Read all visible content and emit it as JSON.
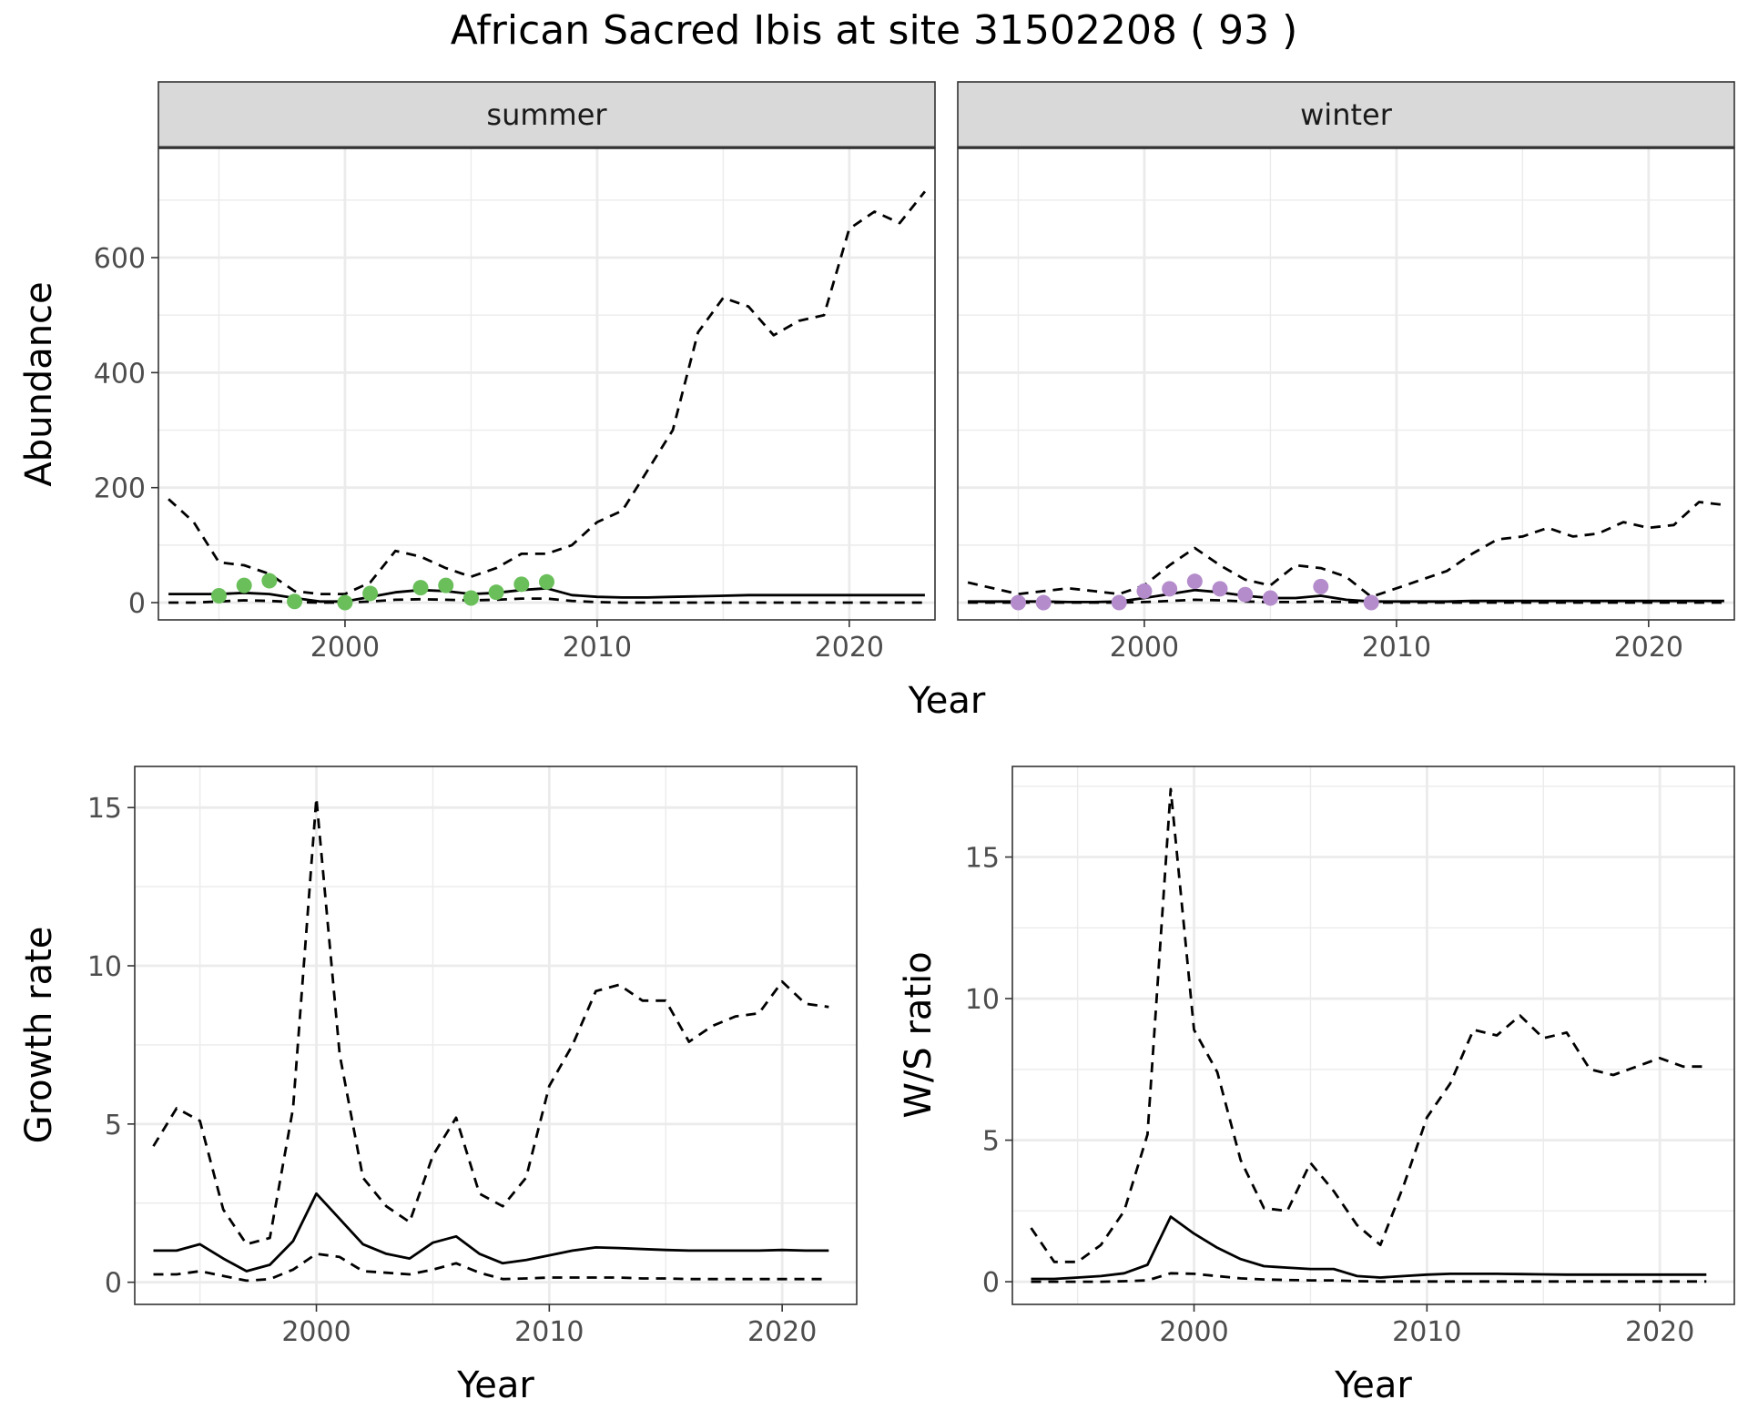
{
  "title": "African Sacred Ibis at site 31502208 ( 93 )",
  "colors": {
    "summer_points": "#6abf5a",
    "winter_points": "#b48ccb",
    "strip_fill": "#d9d9d9",
    "grid": "#ebebeb",
    "line": "#000000"
  },
  "chart_data": [
    {
      "id": "summer",
      "type": "line",
      "strip": "summer",
      "ylabel": "Abundance",
      "xlabel": "Year",
      "xlim": [
        1992.6,
        2023.4
      ],
      "ylim": [
        -30,
        790
      ],
      "xticks": [
        2000,
        2010,
        2020
      ],
      "yticks": [
        0,
        200,
        400,
        600
      ],
      "grid": true,
      "series": [
        {
          "role": "estimate",
          "style": "solid",
          "x": [
            1993,
            1994,
            1995,
            1996,
            1997,
            1998,
            1999,
            2000,
            2001,
            2002,
            2003,
            2004,
            2005,
            2006,
            2007,
            2008,
            2009,
            2010,
            2011,
            2012,
            2013,
            2014,
            2015,
            2016,
            2017,
            2018,
            2019,
            2020,
            2021,
            2022,
            2023
          ],
          "y": [
            15,
            15,
            15,
            17,
            15,
            8,
            2,
            2,
            10,
            18,
            22,
            20,
            15,
            17,
            22,
            25,
            13,
            10,
            9,
            9,
            10,
            11,
            12,
            13,
            13,
            13,
            13,
            13,
            13,
            13,
            13
          ]
        },
        {
          "role": "upper",
          "style": "dashed",
          "x": [
            1993,
            1994,
            1995,
            1996,
            1997,
            1998,
            1999,
            2000,
            2001,
            2002,
            2003,
            2004,
            2005,
            2006,
            2007,
            2008,
            2009,
            2010,
            2011,
            2012,
            2013,
            2014,
            2015,
            2016,
            2017,
            2018,
            2019,
            2020,
            2021,
            2022,
            2023
          ],
          "y": [
            180,
            140,
            70,
            65,
            50,
            20,
            15,
            15,
            35,
            90,
            80,
            60,
            45,
            60,
            85,
            85,
            100,
            140,
            160,
            230,
            300,
            470,
            530,
            515,
            465,
            490,
            500,
            650,
            680,
            660,
            715
          ]
        },
        {
          "role": "lower",
          "style": "dashed",
          "x": [
            1993,
            1994,
            1995,
            1996,
            1997,
            1998,
            1999,
            2000,
            2001,
            2002,
            2003,
            2004,
            2005,
            2006,
            2007,
            2008,
            2009,
            2010,
            2011,
            2012,
            2013,
            2014,
            2015,
            2016,
            2017,
            2018,
            2019,
            2020,
            2021,
            2022,
            2023
          ],
          "y": [
            0,
            0,
            2,
            4,
            3,
            1,
            0,
            0,
            2,
            5,
            6,
            5,
            4,
            5,
            7,
            7,
            3,
            1,
            0,
            0,
            0,
            0,
            0,
            0,
            0,
            0,
            0,
            0,
            0,
            0,
            0
          ]
        },
        {
          "role": "observed",
          "style": "points",
          "x": [
            1995,
            1996,
            1997,
            1998,
            2000,
            2001,
            2003,
            2004,
            2005,
            2006,
            2007,
            2008
          ],
          "y": [
            12,
            30,
            38,
            2,
            0,
            16,
            26,
            30,
            8,
            18,
            32,
            36
          ]
        }
      ]
    },
    {
      "id": "winter",
      "type": "line",
      "strip": "winter",
      "xlabel": "Year",
      "xlim": [
        1992.6,
        2023.4
      ],
      "ylim": [
        -30,
        790
      ],
      "xticks": [
        2000,
        2010,
        2020
      ],
      "yticks": [
        0,
        200,
        400,
        600
      ],
      "grid": true,
      "series": [
        {
          "role": "estimate",
          "style": "solid",
          "x": [
            1993,
            1994,
            1995,
            1996,
            1997,
            1998,
            1999,
            2000,
            2001,
            2002,
            2003,
            2004,
            2005,
            2006,
            2007,
            2008,
            2009,
            2010,
            2011,
            2012,
            2013,
            2014,
            2015,
            2016,
            2017,
            2018,
            2019,
            2020,
            2021,
            2022,
            2023
          ],
          "y": [
            2,
            2,
            2,
            2,
            1,
            1,
            2,
            8,
            15,
            22,
            18,
            12,
            8,
            8,
            12,
            5,
            2,
            2,
            2,
            2,
            3,
            3,
            3,
            3,
            3,
            3,
            3,
            3,
            3,
            3,
            3
          ]
        },
        {
          "role": "upper",
          "style": "dashed",
          "x": [
            1993,
            1994,
            1995,
            1996,
            1997,
            1998,
            1999,
            2000,
            2001,
            2002,
            2003,
            2004,
            2005,
            2006,
            2007,
            2008,
            2009,
            2010,
            2011,
            2012,
            2013,
            2014,
            2015,
            2016,
            2017,
            2018,
            2019,
            2020,
            2021,
            2022,
            2023
          ],
          "y": [
            35,
            25,
            15,
            20,
            25,
            20,
            15,
            30,
            65,
            95,
            65,
            40,
            30,
            65,
            60,
            45,
            10,
            25,
            40,
            55,
            85,
            110,
            115,
            130,
            115,
            120,
            140,
            130,
            135,
            175,
            170
          ]
        },
        {
          "role": "lower",
          "style": "dashed",
          "x": [
            1993,
            1994,
            1995,
            1996,
            1997,
            1998,
            1999,
            2000,
            2001,
            2002,
            2003,
            2004,
            2005,
            2006,
            2007,
            2008,
            2009,
            2010,
            2011,
            2012,
            2013,
            2014,
            2015,
            2016,
            2017,
            2018,
            2019,
            2020,
            2021,
            2022,
            2023
          ],
          "y": [
            0,
            0,
            0,
            0,
            0,
            0,
            0,
            1,
            3,
            5,
            4,
            2,
            1,
            1,
            2,
            1,
            0,
            0,
            0,
            0,
            0,
            0,
            0,
            0,
            0,
            0,
            0,
            0,
            0,
            0,
            0
          ]
        },
        {
          "role": "observed",
          "style": "points",
          "x": [
            1995,
            1996,
            1999,
            2000,
            2001,
            2002,
            2003,
            2004,
            2005,
            2007,
            2009
          ],
          "y": [
            0,
            0,
            0,
            20,
            24,
            37,
            24,
            14,
            8,
            28,
            0
          ]
        }
      ]
    },
    {
      "id": "growth",
      "type": "line",
      "ylabel": "Growth rate",
      "xlabel": "Year",
      "xlim": [
        1992.2,
        2023.2
      ],
      "ylim": [
        -0.7,
        16.3
      ],
      "xticks": [
        2000,
        2010,
        2020
      ],
      "yticks": [
        0,
        5,
        10,
        15
      ],
      "grid": true,
      "series": [
        {
          "role": "estimate",
          "style": "solid",
          "x": [
            1993,
            1994,
            1995,
            1996,
            1997,
            1998,
            1999,
            2000,
            2001,
            2002,
            2003,
            2004,
            2005,
            2006,
            2007,
            2008,
            2009,
            2010,
            2011,
            2012,
            2013,
            2014,
            2015,
            2016,
            2017,
            2018,
            2019,
            2020,
            2021,
            2022
          ],
          "y": [
            1.0,
            1.0,
            1.2,
            0.75,
            0.35,
            0.55,
            1.3,
            2.8,
            2.0,
            1.2,
            0.9,
            0.75,
            1.25,
            1.45,
            0.9,
            0.6,
            0.7,
            0.85,
            1.0,
            1.1,
            1.08,
            1.05,
            1.02,
            1.0,
            1.0,
            1.0,
            1.0,
            1.02,
            1.0,
            1.0
          ]
        },
        {
          "role": "upper",
          "style": "dashed",
          "x": [
            1993,
            1994,
            1995,
            1996,
            1997,
            1998,
            1999,
            2000,
            2001,
            2002,
            2003,
            2004,
            2005,
            2006,
            2007,
            2008,
            2009,
            2010,
            2011,
            2012,
            2013,
            2014,
            2015,
            2016,
            2017,
            2018,
            2019,
            2020,
            2021,
            2022
          ],
          "y": [
            4.3,
            5.5,
            5.1,
            2.3,
            1.2,
            1.4,
            5.5,
            15.3,
            7.2,
            3.3,
            2.4,
            1.9,
            4.0,
            5.2,
            2.8,
            2.4,
            3.3,
            6.2,
            7.5,
            9.2,
            9.4,
            8.9,
            8.9,
            7.6,
            8.1,
            8.4,
            8.5,
            9.5,
            8.8,
            8.7
          ]
        },
        {
          "role": "lower",
          "style": "dashed",
          "x": [
            1993,
            1994,
            1995,
            1996,
            1997,
            1998,
            1999,
            2000,
            2001,
            2002,
            2003,
            2004,
            2005,
            2006,
            2007,
            2008,
            2009,
            2010,
            2011,
            2012,
            2013,
            2014,
            2015,
            2016,
            2017,
            2018,
            2019,
            2020,
            2021,
            2022
          ],
          "y": [
            0.25,
            0.25,
            0.35,
            0.2,
            0.05,
            0.1,
            0.4,
            0.9,
            0.8,
            0.35,
            0.3,
            0.25,
            0.4,
            0.6,
            0.3,
            0.1,
            0.12,
            0.15,
            0.15,
            0.15,
            0.15,
            0.12,
            0.12,
            0.1,
            0.1,
            0.1,
            0.1,
            0.1,
            0.1,
            0.1
          ]
        }
      ]
    },
    {
      "id": "ws",
      "type": "line",
      "ylabel": "W/S ratio",
      "xlabel": "Year",
      "xlim": [
        1992.2,
        2023.2
      ],
      "ylim": [
        -0.8,
        18.2
      ],
      "xticks": [
        2000,
        2010,
        2020
      ],
      "yticks": [
        0,
        5,
        10,
        15
      ],
      "grid": true,
      "series": [
        {
          "role": "estimate",
          "style": "solid",
          "x": [
            1993,
            1994,
            1995,
            1996,
            1997,
            1998,
            1999,
            2000,
            2001,
            2002,
            2003,
            2004,
            2005,
            2006,
            2007,
            2008,
            2009,
            2010,
            2011,
            2012,
            2013,
            2014,
            2015,
            2016,
            2017,
            2018,
            2019,
            2020,
            2021,
            2022
          ],
          "y": [
            0.1,
            0.1,
            0.15,
            0.2,
            0.3,
            0.6,
            2.3,
            1.7,
            1.2,
            0.8,
            0.55,
            0.5,
            0.45,
            0.45,
            0.2,
            0.15,
            0.2,
            0.25,
            0.28,
            0.28,
            0.28,
            0.27,
            0.26,
            0.25,
            0.25,
            0.25,
            0.25,
            0.25,
            0.25,
            0.25
          ]
        },
        {
          "role": "upper",
          "style": "dashed",
          "x": [
            1993,
            1994,
            1995,
            1996,
            1997,
            1998,
            1999,
            2000,
            2001,
            2002,
            2003,
            2004,
            2005,
            2006,
            2007,
            2008,
            2009,
            2010,
            2011,
            2012,
            2013,
            2014,
            2015,
            2016,
            2017,
            2018,
            2019,
            2020,
            2021,
            2022
          ],
          "y": [
            1.9,
            0.7,
            0.7,
            1.3,
            2.5,
            5.2,
            17.4,
            8.9,
            7.4,
            4.3,
            2.6,
            2.5,
            4.2,
            3.2,
            2.0,
            1.3,
            3.4,
            5.8,
            7.0,
            8.9,
            8.7,
            9.4,
            8.6,
            8.8,
            7.5,
            7.3,
            7.6,
            7.9,
            7.6,
            7.6
          ]
        },
        {
          "role": "lower",
          "style": "dashed",
          "x": [
            1993,
            1994,
            1995,
            1996,
            1997,
            1998,
            1999,
            2000,
            2001,
            2002,
            2003,
            2004,
            2005,
            2006,
            2007,
            2008,
            2009,
            2010,
            2011,
            2012,
            2013,
            2014,
            2015,
            2016,
            2017,
            2018,
            2019,
            2020,
            2021,
            2022
          ],
          "y": [
            0,
            0,
            0,
            0,
            0.02,
            0.05,
            0.3,
            0.28,
            0.2,
            0.12,
            0.08,
            0.06,
            0.05,
            0.05,
            0.02,
            0.01,
            0.01,
            0.01,
            0.01,
            0.01,
            0.01,
            0.01,
            0.01,
            0.01,
            0.01,
            0.01,
            0.01,
            0.01,
            0.01,
            0.01
          ]
        }
      ]
    }
  ]
}
